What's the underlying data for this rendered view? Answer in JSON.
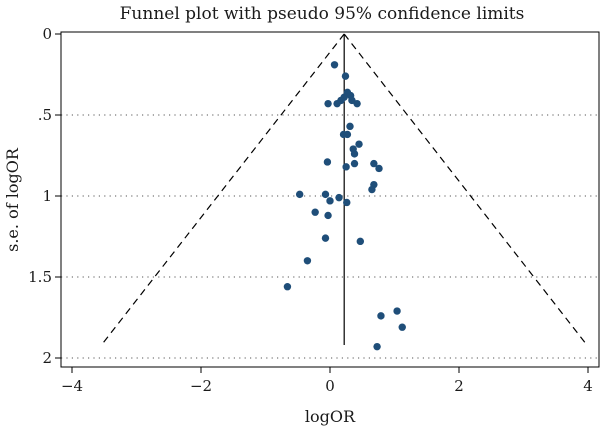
{
  "chart_data": {
    "type": "scatter",
    "title": "Funnel plot with pseudo 95% confidence limits",
    "xlabel": "logOR",
    "ylabel": "s.e. of logOR",
    "xlim": [
      -4,
      4
    ],
    "ylim": [
      2,
      0
    ],
    "y_axis_reversed": true,
    "x_ticks": [
      {
        "value": -4,
        "label": "−4"
      },
      {
        "value": -2,
        "label": "−2"
      },
      {
        "value": 0,
        "label": "0"
      },
      {
        "value": 2,
        "label": "2"
      },
      {
        "value": 4,
        "label": "4"
      }
    ],
    "y_ticks": [
      {
        "value": 0,
        "label": "0"
      },
      {
        "value": 0.5,
        "label": ".5"
      },
      {
        "value": 1,
        "label": "1"
      },
      {
        "value": 1.5,
        "label": "1.5"
      },
      {
        "value": 2,
        "label": "2"
      }
    ],
    "grid": "horizontal dotted at y ticks",
    "pooled_estimate": 0.22,
    "confidence_limit_z": 1.96,
    "point_color": "#1f4e79",
    "line_color": "#000000",
    "points": [
      {
        "x": 0.07,
        "y": 0.19
      },
      {
        "x": 0.24,
        "y": 0.26
      },
      {
        "x": 0.27,
        "y": 0.36
      },
      {
        "x": 0.32,
        "y": 0.38
      },
      {
        "x": 0.22,
        "y": 0.39
      },
      {
        "x": 0.17,
        "y": 0.41
      },
      {
        "x": 0.34,
        "y": 0.41
      },
      {
        "x": -0.03,
        "y": 0.43
      },
      {
        "x": 0.11,
        "y": 0.43
      },
      {
        "x": 0.42,
        "y": 0.43
      },
      {
        "x": 0.31,
        "y": 0.57
      },
      {
        "x": 0.21,
        "y": 0.62
      },
      {
        "x": 0.27,
        "y": 0.62
      },
      {
        "x": 0.45,
        "y": 0.68
      },
      {
        "x": 0.36,
        "y": 0.71
      },
      {
        "x": 0.38,
        "y": 0.74
      },
      {
        "x": -0.04,
        "y": 0.79
      },
      {
        "x": 0.25,
        "y": 0.82
      },
      {
        "x": 0.38,
        "y": 0.8
      },
      {
        "x": 0.68,
        "y": 0.8
      },
      {
        "x": 0.76,
        "y": 0.83
      },
      {
        "x": 0.68,
        "y": 0.93
      },
      {
        "x": 0.65,
        "y": 0.96
      },
      {
        "x": -0.47,
        "y": 0.99
      },
      {
        "x": -0.07,
        "y": 0.99
      },
      {
        "x": 0.14,
        "y": 1.01
      },
      {
        "x": 0.0,
        "y": 1.03
      },
      {
        "x": 0.26,
        "y": 1.04
      },
      {
        "x": -0.23,
        "y": 1.1
      },
      {
        "x": -0.03,
        "y": 1.12
      },
      {
        "x": -0.07,
        "y": 1.26
      },
      {
        "x": 0.47,
        "y": 1.28
      },
      {
        "x": -0.35,
        "y": 1.4
      },
      {
        "x": -0.66,
        "y": 1.56
      },
      {
        "x": 1.04,
        "y": 1.71
      },
      {
        "x": 0.79,
        "y": 1.74
      },
      {
        "x": 1.12,
        "y": 1.81
      },
      {
        "x": 0.73,
        "y": 1.93
      }
    ]
  }
}
